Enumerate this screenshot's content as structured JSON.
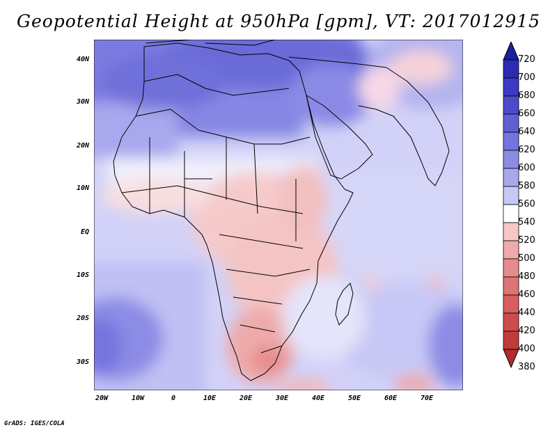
{
  "title": "Geopotential Height at 950hPa [gpm], VT: 2017012915",
  "credit": "GrADS: IGES/COLA",
  "map": {
    "region": "Africa and surrounding oceans",
    "lat_labels": [
      "40N",
      "30N",
      "20N",
      "10N",
      "EQ",
      "10S",
      "20S",
      "30S"
    ],
    "lon_labels": [
      "20W",
      "10W",
      "0",
      "10E",
      "20E",
      "30E",
      "40E",
      "50E",
      "60E",
      "70E"
    ]
  },
  "colorbar": {
    "labels": [
      "720",
      "700",
      "680",
      "660",
      "640",
      "620",
      "600",
      "580",
      "560",
      "540",
      "520",
      "500",
      "480",
      "460",
      "440",
      "420",
      "400",
      "380"
    ],
    "colors": [
      "#1e1ea0",
      "#2b2bb4",
      "#3a3ac2",
      "#4b4bcc",
      "#5f5fd6",
      "#7474de",
      "#8c8ce6",
      "#a8a8ee",
      "#c8c8f6",
      "#ffffff",
      "#f6c8c8",
      "#eeaaaa",
      "#e68c8c",
      "#de7474",
      "#d65f5f",
      "#cc4b4b",
      "#c23a3a",
      "#b42b2b"
    ]
  }
}
